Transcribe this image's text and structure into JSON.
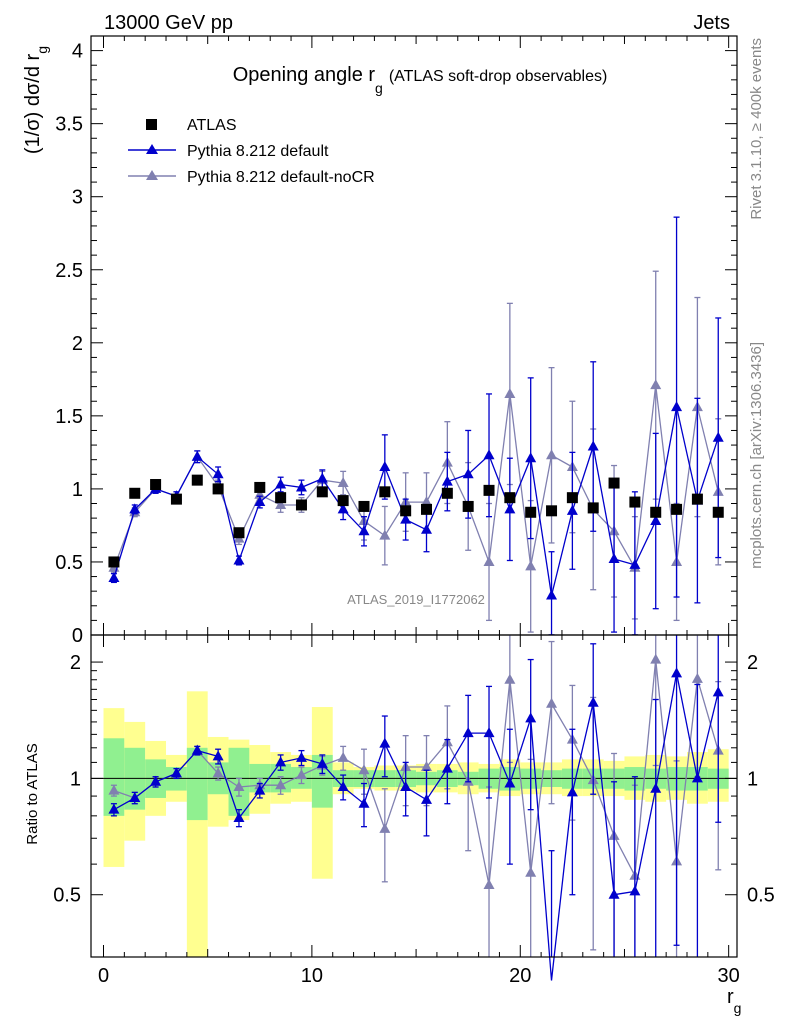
{
  "header": {
    "energy_label": "13000 GeV pp",
    "category_label": "Jets"
  },
  "side_labels": {
    "rivet": "Rivet 3.1.10, ≥ 400k events",
    "mcplots": "mcplots.cern.ch [arXiv:1306.3436]"
  },
  "colors": {
    "atlas": "#000000",
    "default": "#0000cc",
    "nocr": "#8080b0",
    "band_inner": "#90f090",
    "band_outer": "#ffff90"
  },
  "chart_data": [
    {
      "type": "scatter",
      "title": "Opening angle r",
      "title_sub": "g",
      "title_suffix": "(ATLAS soft-drop observables)",
      "ylabel": "(1/σ) dσ/d r",
      "ylabel_sub": "g",
      "ylim": [
        0,
        4.1
      ],
      "xlim": [
        -0.6,
        30.4
      ],
      "yticks": [
        0,
        0.5,
        1,
        1.5,
        2,
        2.5,
        3,
        3.5,
        4
      ],
      "ytick_labels": [
        "0",
        "0.5",
        "1",
        "1.5",
        "2",
        "2.5",
        "3",
        "3.5",
        "4"
      ],
      "watermark": "ATLAS_2019_I1772062",
      "legend": [
        "ATLAS",
        "Pythia 8.212 default",
        "Pythia 8.212 default-noCR"
      ],
      "x": [
        0.5,
        1.5,
        2.5,
        3.5,
        4.5,
        5.5,
        6.5,
        7.5,
        8.5,
        9.5,
        10.5,
        11.5,
        12.5,
        13.5,
        14.5,
        15.5,
        16.5,
        17.5,
        18.5,
        19.5,
        20.5,
        21.5,
        22.5,
        23.5,
        24.5,
        25.5,
        26.5,
        27.5,
        28.5,
        29.5
      ],
      "series": [
        {
          "name": "ATLAS",
          "values": [
            0.5,
            0.97,
            1.03,
            0.93,
            1.06,
            1.0,
            0.7,
            1.01,
            0.94,
            0.89,
            0.98,
            0.92,
            0.88,
            0.98,
            0.85,
            0.86,
            0.97,
            0.88,
            0.99,
            0.94,
            0.84,
            0.85,
            0.94,
            0.87,
            1.04,
            0.91,
            0.84,
            0.86,
            0.93,
            0.84
          ]
        },
        {
          "name": "Pythia 8.212 default",
          "values": [
            0.39,
            0.86,
            1.0,
            0.95,
            1.22,
            1.1,
            0.51,
            0.91,
            1.03,
            1.01,
            1.07,
            0.86,
            0.71,
            1.15,
            0.79,
            0.72,
            1.05,
            1.1,
            1.23,
            0.86,
            1.21,
            0.27,
            0.85,
            1.29,
            0.52,
            0.48,
            0.78,
            1.56,
            0.92,
            1.35
          ],
          "errors": [
            0.03,
            0.03,
            0.03,
            0.03,
            0.04,
            0.05,
            0.03,
            0.04,
            0.05,
            0.05,
            0.06,
            0.07,
            0.1,
            0.22,
            0.14,
            0.15,
            0.2,
            0.3,
            0.42,
            0.35,
            0.55,
            0.3,
            0.4,
            0.58,
            0.5,
            0.5,
            0.6,
            1.3,
            0.7,
            0.82
          ]
        },
        {
          "name": "Pythia 8.212 default-noCR",
          "values": [
            0.46,
            0.84,
            1.0,
            0.95,
            1.22,
            1.02,
            0.66,
            0.96,
            0.89,
            0.89,
            1.06,
            1.04,
            0.78,
            0.68,
            0.91,
            0.91,
            1.18,
            0.88,
            0.5,
            1.65,
            0.47,
            1.23,
            1.15,
            0.86,
            0.71,
            0.46,
            1.71,
            0.5,
            1.56,
            0.98
          ],
          "errors": [
            0.03,
            0.03,
            0.03,
            0.03,
            0.04,
            0.04,
            0.04,
            0.04,
            0.05,
            0.05,
            0.06,
            0.08,
            0.13,
            0.2,
            0.2,
            0.2,
            0.28,
            0.3,
            0.4,
            0.62,
            0.45,
            0.6,
            0.45,
            0.55,
            0.45,
            0.35,
            0.78,
            0.4,
            0.75,
            0.5
          ]
        }
      ]
    },
    {
      "type": "line",
      "title": "",
      "ylabel": "Ratio to ATLAS",
      "xlabel": "r",
      "xlabel_sub": "g",
      "ylim": [
        0.345,
        2.35
      ],
      "xlim": [
        -0.6,
        30.4
      ],
      "xticks": [
        0,
        10,
        20,
        30
      ],
      "xtick_labels": [
        "0",
        "10",
        "20",
        "30"
      ],
      "yticks": [
        0.5,
        1,
        2
      ],
      "ytick_labels": [
        "0.5",
        "1",
        "2"
      ],
      "reference_line": 1,
      "x": [
        0.5,
        1.5,
        2.5,
        3.5,
        4.5,
        5.5,
        6.5,
        7.5,
        8.5,
        9.5,
        10.5,
        11.5,
        12.5,
        13.5,
        14.5,
        15.5,
        16.5,
        17.5,
        18.5,
        19.5,
        20.5,
        21.5,
        22.5,
        23.5,
        24.5,
        25.5,
        26.5,
        27.5,
        28.5,
        29.5
      ],
      "bands": {
        "inner_up": [
          0.27,
          0.2,
          0.12,
          0.07,
          0.2,
          0.1,
          0.2,
          0.09,
          0.09,
          0.07,
          0.15,
          0.05,
          0.05,
          0.05,
          0.05,
          0.04,
          0.05,
          0.04,
          0.06,
          0.07,
          0.06,
          0.05,
          0.06,
          0.06,
          0.06,
          0.07,
          0.06,
          0.07,
          0.07,
          0.06
        ],
        "outer_up": [
          0.52,
          0.4,
          0.25,
          0.15,
          0.68,
          0.28,
          0.26,
          0.22,
          0.17,
          0.15,
          0.53,
          0.1,
          0.07,
          0.08,
          0.08,
          0.09,
          0.09,
          0.1,
          0.09,
          0.12,
          0.1,
          0.1,
          0.12,
          0.12,
          0.11,
          0.14,
          0.15,
          0.14,
          0.17,
          0.19
        ],
        "inner_down": [
          0.2,
          0.17,
          0.11,
          0.07,
          0.22,
          0.09,
          0.2,
          0.08,
          0.08,
          0.06,
          0.16,
          0.05,
          0.05,
          0.05,
          0.05,
          0.04,
          0.05,
          0.04,
          0.06,
          0.07,
          0.06,
          0.05,
          0.06,
          0.06,
          0.06,
          0.07,
          0.06,
          0.07,
          0.07,
          0.06
        ],
        "outer_down": [
          0.41,
          0.31,
          0.2,
          0.13,
          0.72,
          0.25,
          0.22,
          0.19,
          0.14,
          0.13,
          0.45,
          0.09,
          0.06,
          0.07,
          0.07,
          0.08,
          0.08,
          0.09,
          0.08,
          0.1,
          0.09,
          0.09,
          0.1,
          0.1,
          0.1,
          0.12,
          0.13,
          0.12,
          0.14,
          0.13
        ]
      },
      "series": [
        {
          "name": "Pythia 8.212 default / ATLAS",
          "values": [
            0.83,
            0.89,
            0.98,
            1.03,
            1.18,
            1.14,
            0.79,
            0.93,
            1.1,
            1.13,
            1.09,
            0.95,
            0.86,
            1.23,
            0.95,
            0.88,
            1.06,
            1.31,
            1.31,
            0.97,
            1.43,
            0.3,
            0.92,
            1.57,
            0.5,
            0.51,
            0.94,
            1.87,
            1.0,
            1.67
          ],
          "errors": [
            0.03,
            0.03,
            0.03,
            0.03,
            0.03,
            0.05,
            0.04,
            0.04,
            0.05,
            0.05,
            0.06,
            0.07,
            0.11,
            0.22,
            0.15,
            0.17,
            0.2,
            0.33,
            0.42,
            0.37,
            0.6,
            0.35,
            0.42,
            0.66,
            0.48,
            0.5,
            0.66,
            1.5,
            0.75,
            0.9
          ]
        },
        {
          "name": "Pythia 8.212 default-noCR / ATLAS",
          "values": [
            0.93,
            0.89,
            0.98,
            1.03,
            1.18,
            1.03,
            0.95,
            0.96,
            0.96,
            1.02,
            1.08,
            1.13,
            1.05,
            0.74,
            1.07,
            1.07,
            1.24,
            0.98,
            0.53,
            1.8,
            0.57,
            1.56,
            1.26,
            0.99,
            0.71,
            0.56,
            2.03,
            0.61,
            1.81,
            1.18
          ],
          "errors": [
            0.03,
            0.03,
            0.03,
            0.03,
            0.03,
            0.04,
            0.05,
            0.04,
            0.05,
            0.05,
            0.06,
            0.08,
            0.14,
            0.2,
            0.22,
            0.22,
            0.3,
            0.33,
            0.42,
            0.7,
            0.55,
            0.7,
            0.48,
            0.63,
            0.45,
            0.4,
            0.95,
            0.5,
            0.8,
            0.6
          ]
        }
      ]
    }
  ]
}
